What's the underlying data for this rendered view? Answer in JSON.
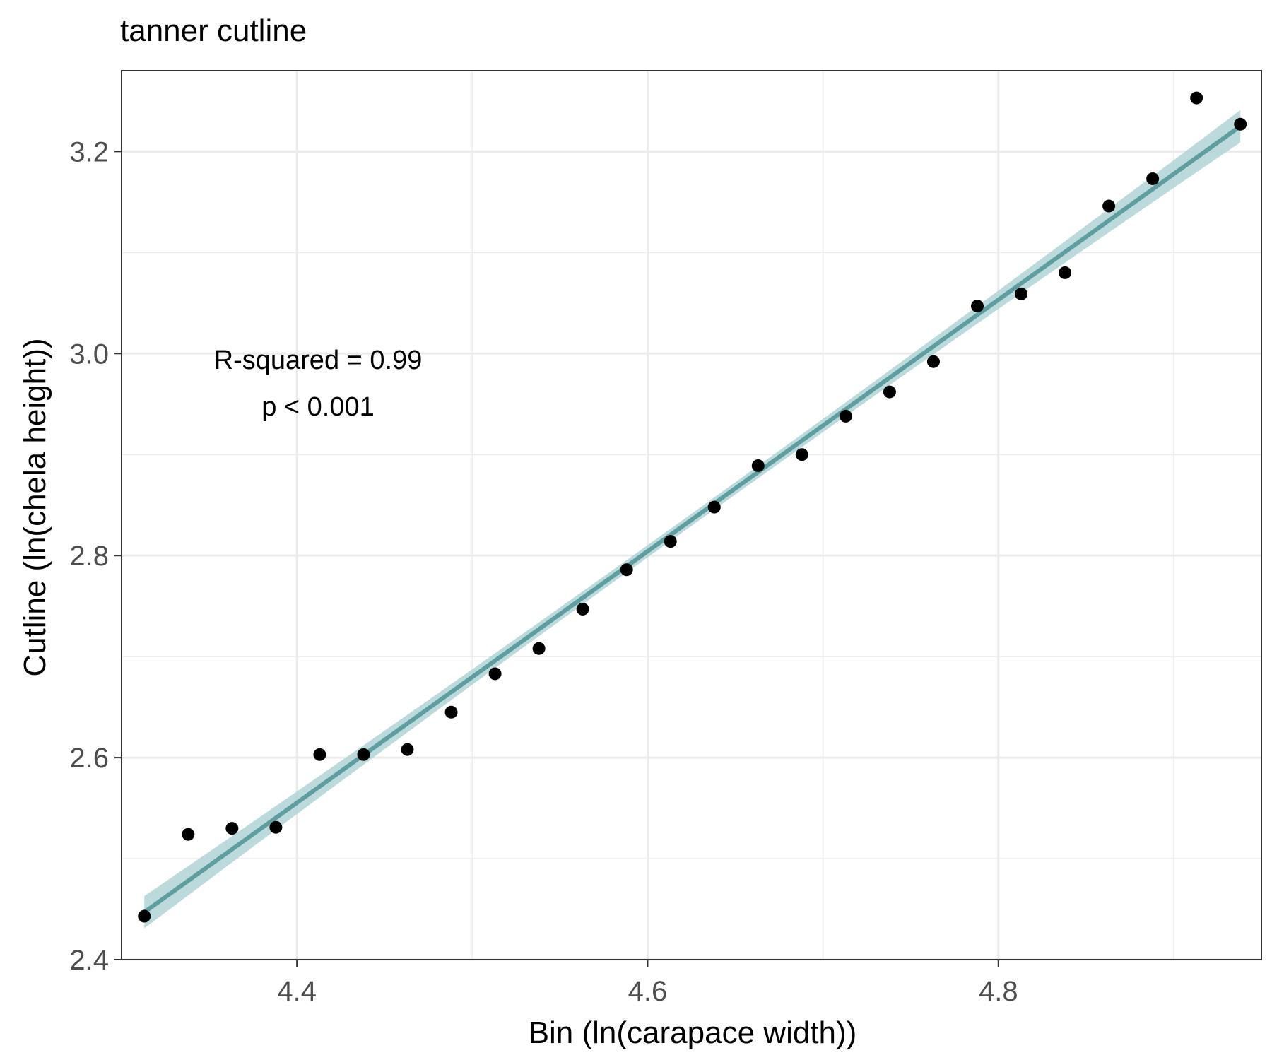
{
  "chart_data": {
    "type": "scatter",
    "title": "tanner cutline",
    "xlabel": "Bin (ln(carapace width))",
    "ylabel": "Cutline (ln(chela height))",
    "xlim": [
      4.3,
      4.95
    ],
    "ylim": [
      2.4,
      3.28
    ],
    "x_ticks": [
      4.4,
      4.6,
      4.8
    ],
    "x_tick_labels": [
      "4.4",
      "4.6",
      "4.8"
    ],
    "y_ticks": [
      2.4,
      2.6,
      2.8,
      3.0,
      3.2
    ],
    "y_tick_labels": [
      "2.4",
      "2.6",
      "2.8",
      "3.0",
      "3.2"
    ],
    "grid": true,
    "annotations": [
      "R-squared = 0.99",
      "p < 0.001"
    ],
    "series": [
      {
        "x": [
          4.313,
          4.338,
          4.363,
          4.388,
          4.413,
          4.438,
          4.463,
          4.488,
          4.513,
          4.538,
          4.563,
          4.588,
          4.613,
          4.638,
          4.663,
          4.688,
          4.713,
          4.738,
          4.763,
          4.788,
          4.813,
          4.838,
          4.863,
          4.888,
          4.913,
          4.938
        ],
        "y": [
          2.443,
          2.524,
          2.53,
          2.531,
          2.603,
          2.603,
          2.608,
          2.645,
          2.683,
          2.708,
          2.747,
          2.786,
          2.814,
          2.848,
          2.889,
          2.9,
          2.938,
          2.962,
          2.992,
          3.047,
          3.059,
          3.08,
          3.146,
          3.173,
          3.253,
          3.227
        ]
      }
    ],
    "fit": {
      "x": [
        4.313,
        4.938
      ],
      "y": [
        2.447,
        3.225
      ],
      "ci_halfwidth": [
        0.016,
        0.016
      ],
      "ci_halfwidth_mid": 0.006
    },
    "colors": {
      "points": "#000000",
      "fit_line": "#5f9ea0",
      "ci_band": "#b0d4d5",
      "grid": "#ebebeb",
      "panel_border": "#333333"
    }
  }
}
